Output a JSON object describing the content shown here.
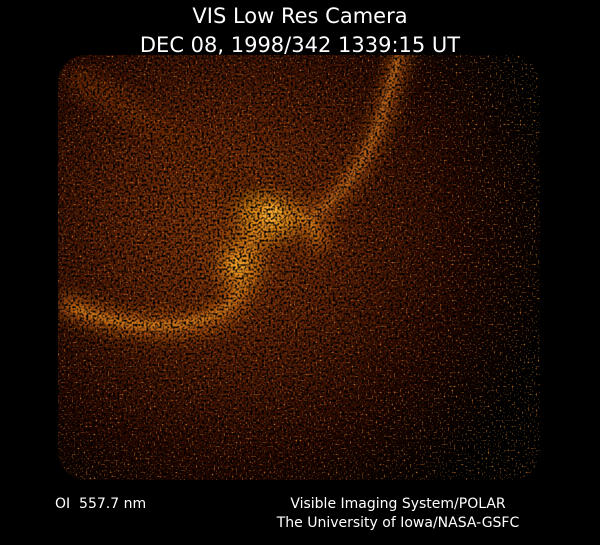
{
  "header": {
    "title": "VIS Low Res Camera",
    "timestamp": "DEC 08, 1998/342 1339:15 UT"
  },
  "footer": {
    "wavelength": "OI  557.7 nm",
    "instrument": "Visible Imaging System/POLAR",
    "institution": "The University of Iowa/NASA-GSFC"
  }
}
